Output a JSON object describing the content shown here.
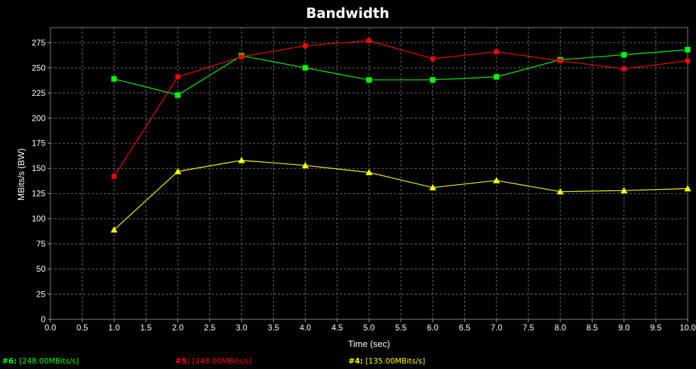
{
  "chart_data": {
    "type": "line",
    "title": "Bandwidth",
    "xlabel": "Time (sec)",
    "ylabel": "MBits/s (BW)",
    "xlim": [
      0,
      10
    ],
    "ylim": [
      0,
      290
    ],
    "grid": true,
    "x_ticks": [
      "0.0",
      "0.5",
      "1.0",
      "1.5",
      "2.0",
      "2.5",
      "3.0",
      "3.5",
      "4.0",
      "4.5",
      "5.0",
      "5.5",
      "6.0",
      "6.5",
      "7.0",
      "7.5",
      "8.0",
      "8.5",
      "9.0",
      "9.5",
      "10.0"
    ],
    "y_ticks": [
      "0",
      "25",
      "50",
      "75",
      "100",
      "125",
      "150",
      "175",
      "200",
      "225",
      "250",
      "275"
    ],
    "series": [
      {
        "name": "#6",
        "color": "#00ff00",
        "marker": "square",
        "x": [
          1,
          2,
          3,
          4,
          5,
          6,
          7,
          8,
          9,
          10
        ],
        "values": [
          239,
          223,
          262,
          250,
          238,
          238,
          241,
          258,
          263,
          268
        ]
      },
      {
        "name": "#5",
        "color": "#ff0000",
        "marker": "circle",
        "x": [
          1,
          2,
          3,
          4,
          5,
          6,
          7,
          8,
          9,
          10
        ],
        "values": [
          142,
          241,
          261,
          272,
          277,
          259,
          266,
          257,
          249,
          257
        ]
      },
      {
        "name": "#4",
        "color": "#ffff00",
        "marker": "triangle",
        "x": [
          1,
          2,
          3,
          4,
          5,
          6,
          7,
          8,
          9,
          10
        ],
        "values": [
          89,
          147,
          158,
          153,
          146,
          131,
          138,
          127,
          128,
          130
        ]
      }
    ]
  },
  "legend": [
    {
      "id": "#6:",
      "value": "[248.00MBits/s]",
      "color": "#00ff00"
    },
    {
      "id": "#5:",
      "value": "[248.00MBits/s]",
      "color": "#ff0000"
    },
    {
      "id": "#4:",
      "value": "[135.00MBits/s]",
      "color": "#ffff00"
    }
  ]
}
